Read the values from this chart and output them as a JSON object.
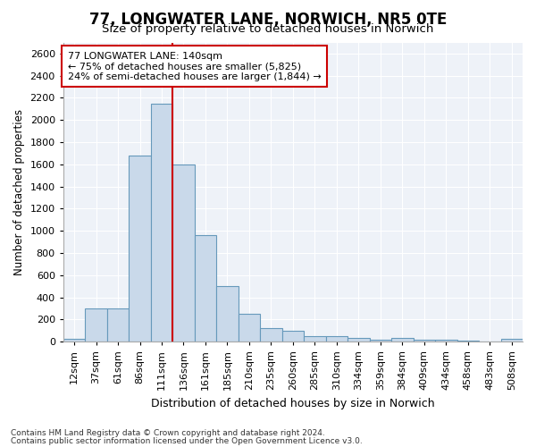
{
  "title": "77, LONGWATER LANE, NORWICH, NR5 0TE",
  "subtitle": "Size of property relative to detached houses in Norwich",
  "xlabel": "Distribution of detached houses by size in Norwich",
  "ylabel": "Number of detached properties",
  "categories": [
    "12sqm",
    "37sqm",
    "61sqm",
    "86sqm",
    "111sqm",
    "136sqm",
    "161sqm",
    "185sqm",
    "210sqm",
    "235sqm",
    "260sqm",
    "285sqm",
    "310sqm",
    "334sqm",
    "359sqm",
    "384sqm",
    "409sqm",
    "434sqm",
    "458sqm",
    "483sqm",
    "508sqm"
  ],
  "values": [
    25,
    300,
    300,
    1680,
    2150,
    1600,
    960,
    500,
    250,
    120,
    100,
    50,
    50,
    35,
    20,
    35,
    20,
    20,
    10,
    5,
    25
  ],
  "bar_color": "#c9d9ea",
  "bar_edge_color": "#6699bb",
  "vline_color": "#cc0000",
  "vline_x_index": 5,
  "annotation_text": "77 LONGWATER LANE: 140sqm\n← 75% of detached houses are smaller (5,825)\n24% of semi-detached houses are larger (1,844) →",
  "annotation_box_facecolor": "#ffffff",
  "annotation_box_edgecolor": "#cc0000",
  "ylim": [
    0,
    2700
  ],
  "yticks": [
    0,
    200,
    400,
    600,
    800,
    1000,
    1200,
    1400,
    1600,
    1800,
    2000,
    2200,
    2400,
    2600
  ],
  "footer_line1": "Contains HM Land Registry data © Crown copyright and database right 2024.",
  "footer_line2": "Contains public sector information licensed under the Open Government Licence v3.0.",
  "bg_color": "#eef2f8",
  "title_fontsize": 12,
  "subtitle_fontsize": 9.5,
  "xlabel_fontsize": 9,
  "ylabel_fontsize": 8.5,
  "tick_fontsize": 8,
  "annotation_fontsize": 8,
  "footer_fontsize": 6.5
}
